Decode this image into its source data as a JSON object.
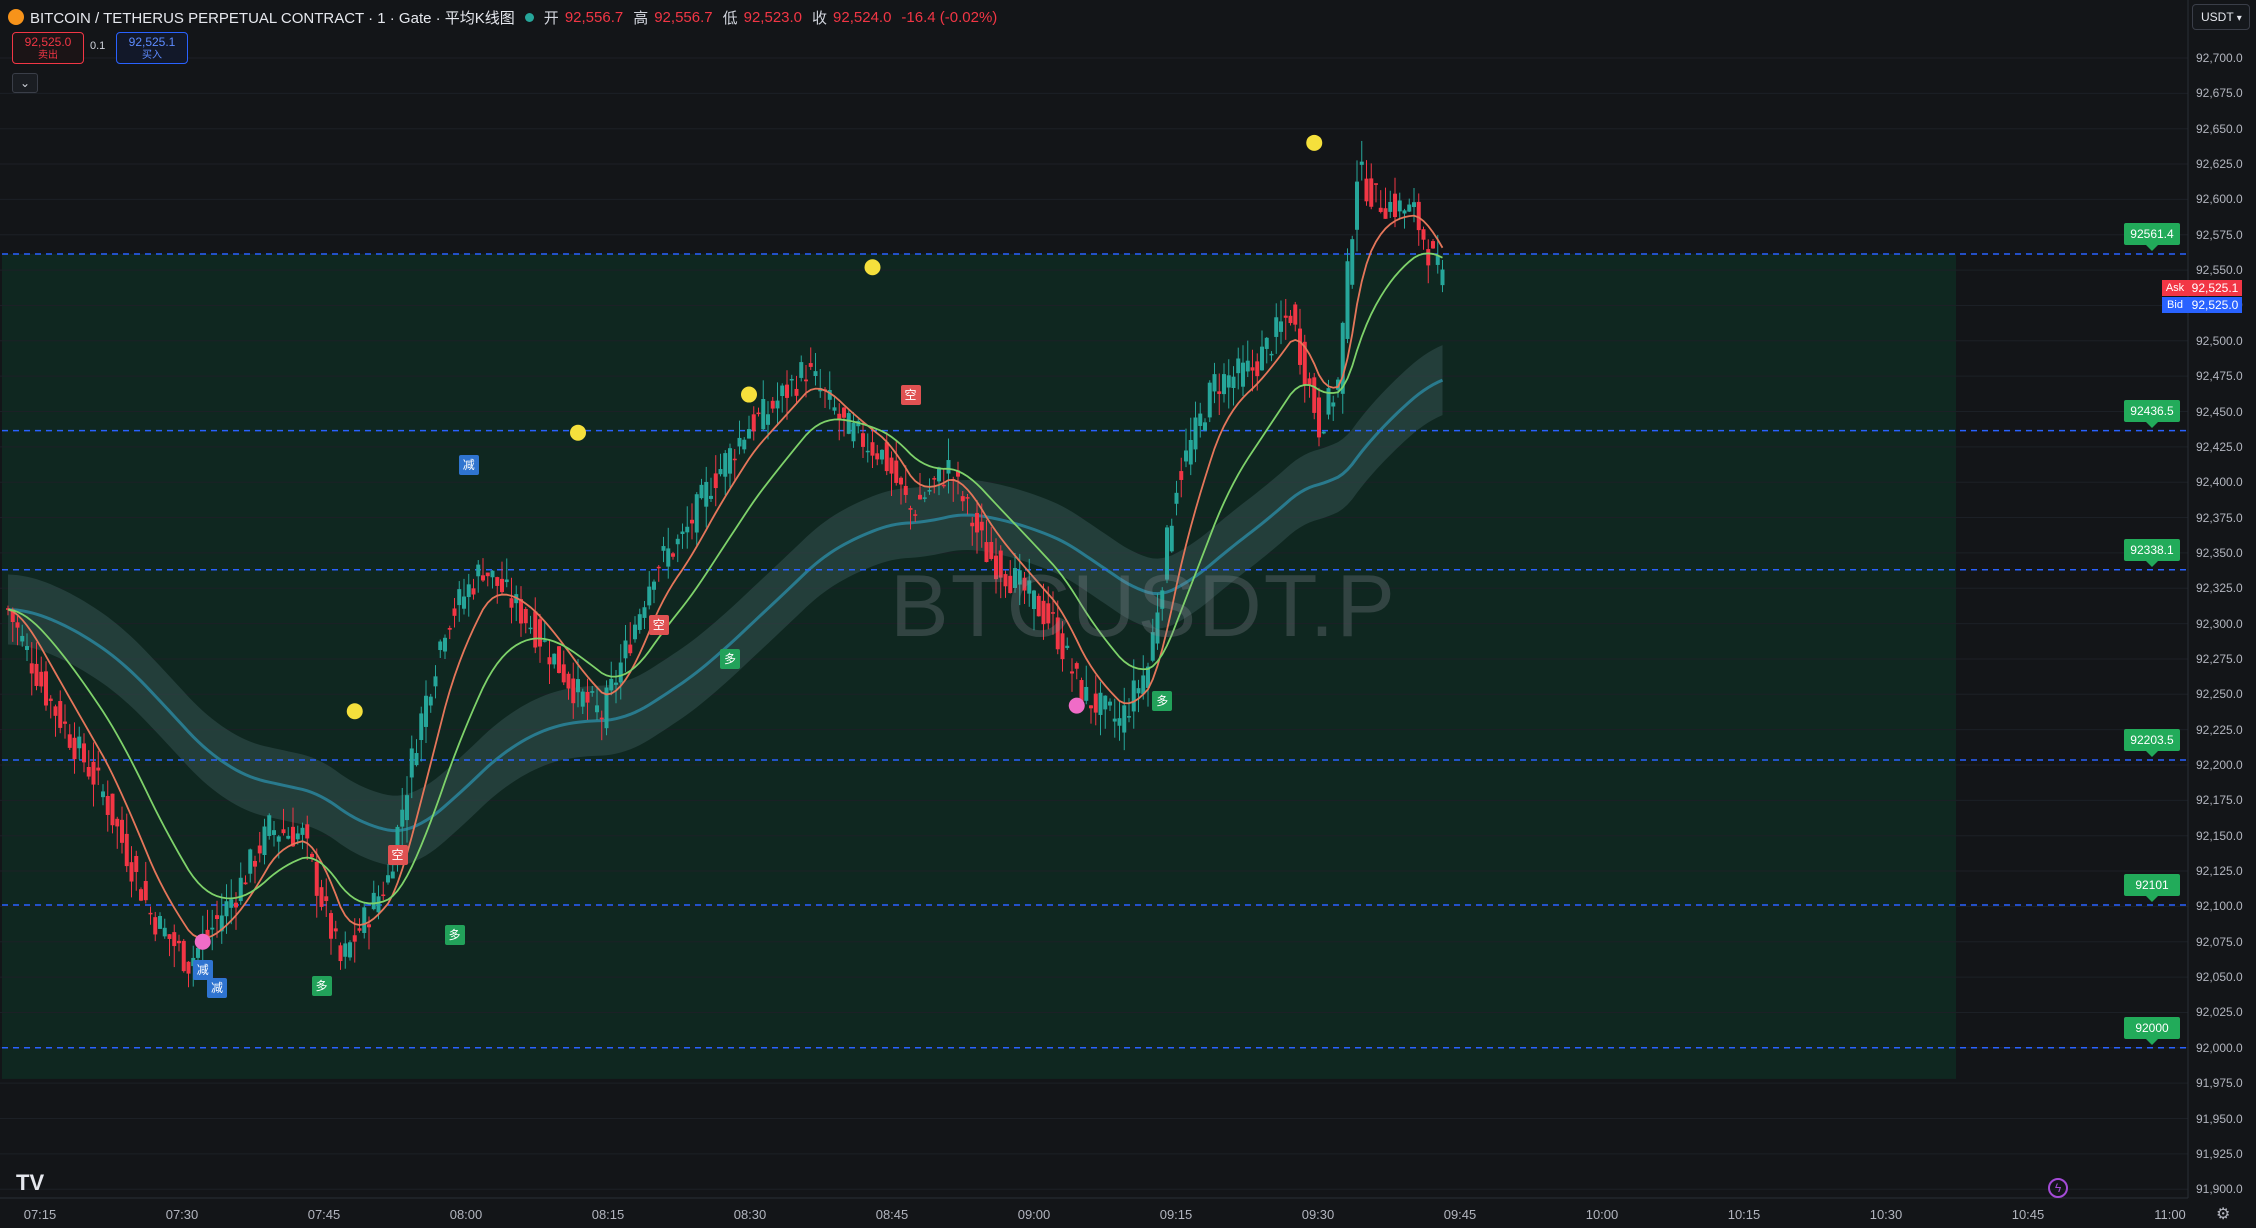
{
  "header": {
    "title": "BITCOIN / TETHERUS PERPETUAL CONTRACT · 1 · Gate · 平均K线图",
    "open_label": "开",
    "open_value": "92,556.7",
    "high_label": "高",
    "high_value": "92,556.7",
    "low_label": "低",
    "low_value": "92,523.0",
    "close_label": "收",
    "close_value": "92,524.0",
    "change_value": "-16.4 (-0.02%)"
  },
  "trade": {
    "sell_price": "92,525.0",
    "sell_label": "卖出",
    "spread": "0.1",
    "buy_price": "92,525.1",
    "buy_label": "买入"
  },
  "currency_selector": "USDT",
  "watermark": "BTCUSDT.P",
  "ask_bid": {
    "ask_label": "Ask",
    "ask_value": "92,525.1",
    "bid_label": "Bid",
    "bid_value": "92,525.0"
  },
  "level_labels": [
    "92561.4",
    "92436.5",
    "92338.1",
    "92203.5",
    "92101",
    "92000"
  ],
  "colors": {
    "background": "#131518",
    "zone": "#0f2a22",
    "up": "#26a69a",
    "down": "#f23645",
    "level_line": "#2962ff",
    "ema_fast": "#e5765a",
    "ema_slow": "#7ed26a",
    "band": "#3c5a5a",
    "level_label_bg": "#22ab5a",
    "marker_peak": "#f5e03c",
    "marker_dip": "#f06cc7"
  },
  "icons": [
    "gate-logo-icon",
    "tradingview-logo-icon",
    "lightning-icon",
    "gear-icon",
    "chevron-down-icon"
  ],
  "chart_data": {
    "type": "candlestick",
    "y_ticks": [
      "92,700.0",
      "92,675.0",
      "92,650.0",
      "92,625.0",
      "92,600.0",
      "92,575.0",
      "92,550.0",
      "92,525.0",
      "92,500.0",
      "92,475.0",
      "92,450.0",
      "92,425.0",
      "92,400.0",
      "92,375.0",
      "92,350.0",
      "92,325.0",
      "92,300.0",
      "92,275.0",
      "92,250.0",
      "92,225.0",
      "92,200.0",
      "92,175.0",
      "92,150.0",
      "92,125.0",
      "92,100.0",
      "92,075.0",
      "92,050.0",
      "92,025.0",
      "92,000.0",
      "91,975.0",
      "91,950.0",
      "91,925.0",
      "91,900.0"
    ],
    "x_ticks": [
      "07:15",
      "07:30",
      "07:45",
      "08:00",
      "08:15",
      "08:30",
      "08:45",
      "09:00",
      "09:15",
      "09:30",
      "09:45",
      "10:00",
      "10:15",
      "10:30",
      "10:45",
      "11:00"
    ],
    "ylim": [
      91890,
      92710
    ],
    "levels": [
      92561.4,
      92436.5,
      92338.1,
      92203.5,
      92101,
      92000
    ],
    "close_anchors": [
      [
        0,
        92310
      ],
      [
        8,
        92250
      ],
      [
        20,
        92180
      ],
      [
        30,
        92095
      ],
      [
        38,
        92060
      ],
      [
        48,
        92110
      ],
      [
        55,
        92155
      ],
      [
        62,
        92150
      ],
      [
        70,
        92060
      ],
      [
        80,
        92120
      ],
      [
        86,
        92220
      ],
      [
        92,
        92300
      ],
      [
        100,
        92340
      ],
      [
        110,
        92300
      ],
      [
        120,
        92250
      ],
      [
        125,
        92235
      ],
      [
        130,
        92280
      ],
      [
        136,
        92340
      ],
      [
        142,
        92360
      ],
      [
        148,
        92400
      ],
      [
        156,
        92440
      ],
      [
        160,
        92450
      ],
      [
        168,
        92480
      ],
      [
        176,
        92440
      ],
      [
        184,
        92420
      ],
      [
        190,
        92380
      ],
      [
        198,
        92410
      ],
      [
        206,
        92350
      ],
      [
        212,
        92330
      ],
      [
        220,
        92300
      ],
      [
        226,
        92250
      ],
      [
        234,
        92230
      ],
      [
        240,
        92270
      ],
      [
        246,
        92400
      ],
      [
        254,
        92470
      ],
      [
        262,
        92480
      ],
      [
        270,
        92520
      ],
      [
        276,
        92440
      ],
      [
        280,
        92470
      ],
      [
        284,
        92620
      ],
      [
        288,
        92600
      ],
      [
        296,
        92590
      ],
      [
        302,
        92540
      ]
    ],
    "markers": {
      "peaks": [
        [
          120,
          92435
        ],
        [
          73,
          92238
        ],
        [
          156,
          92462
        ],
        [
          182,
          92552
        ],
        [
          275,
          92640
        ]
      ],
      "dips": [
        [
          41,
          92075
        ],
        [
          225,
          92242
        ]
      ],
      "signals": [
        {
          "text": "减",
          "i": 41,
          "price": 92055,
          "color": "#2f74d0"
        },
        {
          "text": "减",
          "i": 44,
          "price": 92042,
          "color": "#2f74d0"
        },
        {
          "text": "减",
          "i": 97,
          "price": 92412,
          "color": "#2f74d0"
        },
        {
          "text": "多",
          "i": 66,
          "price": 92044,
          "color": "#22a25a"
        },
        {
          "text": "多",
          "i": 94,
          "price": 92080,
          "color": "#22a25a"
        },
        {
          "text": "多",
          "i": 152,
          "price": 92275,
          "color": "#22a25a"
        },
        {
          "text": "多",
          "i": 243,
          "price": 92245,
          "color": "#22a25a"
        },
        {
          "text": "空",
          "i": 82,
          "price": 92136,
          "color": "#e05252"
        },
        {
          "text": "空",
          "i": 137,
          "price": 92299,
          "color": "#e05252"
        },
        {
          "text": "空",
          "i": 190,
          "price": 92462,
          "color": "#e05252"
        }
      ]
    }
  }
}
